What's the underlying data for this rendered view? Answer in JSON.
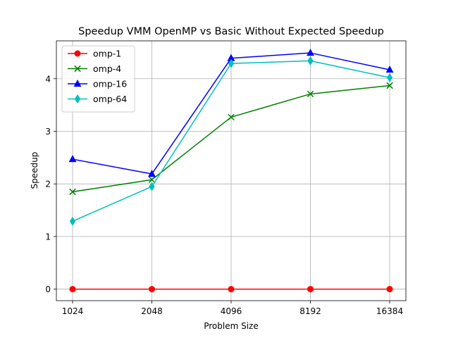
{
  "chart_data": {
    "type": "line",
    "title": "Speedup VMM OpenMP vs Basic Without Expected Speedup",
    "xlabel": "Problem Size",
    "ylabel": "Speedup",
    "categories": [
      "1024",
      "2048",
      "4096",
      "8192",
      "16384"
    ],
    "ylim": [
      -0.22,
      4.72
    ],
    "yticks": [
      0,
      1,
      2,
      3,
      4
    ],
    "grid": true,
    "legend_position": "top-left",
    "series": [
      {
        "name": "omp-1",
        "color": "#ff0000",
        "marker": "circle",
        "values": [
          0.0,
          0.0,
          0.0,
          0.0,
          0.0
        ]
      },
      {
        "name": "omp-4",
        "color": "#008000",
        "marker": "x",
        "values": [
          1.85,
          2.08,
          3.27,
          3.71,
          3.87
        ]
      },
      {
        "name": "omp-16",
        "color": "#0000ff",
        "marker": "triangle",
        "values": [
          2.47,
          2.19,
          4.39,
          4.49,
          4.17
        ]
      },
      {
        "name": "omp-64",
        "color": "#00bfbf",
        "marker": "diamond",
        "values": [
          1.29,
          1.95,
          4.29,
          4.34,
          4.02
        ]
      }
    ]
  }
}
